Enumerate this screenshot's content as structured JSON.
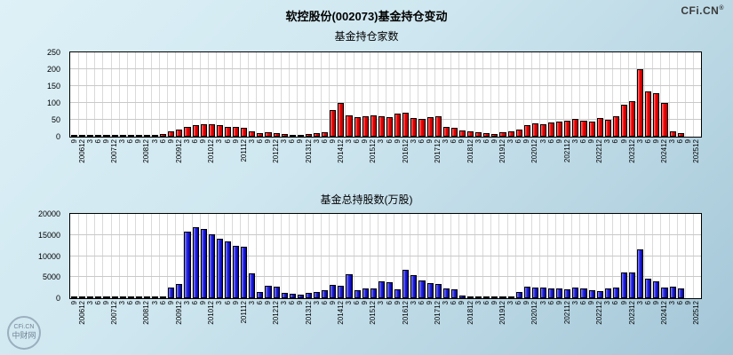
{
  "page": {
    "title": "软控股份(002073)基金持仓变动",
    "brand": "CFi.CN",
    "brand_reg": "®",
    "stamp": {
      "line1": "CFi.CN",
      "line2": "中财网"
    }
  },
  "chart_data": [
    {
      "type": "bar",
      "title": "基金持仓家数",
      "xlabel": "",
      "ylabel": "",
      "bar_color": "#ff0000",
      "bar_class": "red",
      "grid": true,
      "legend": "none",
      "ylim": [
        0,
        250
      ],
      "yticks": [
        0,
        50,
        100,
        150,
        200,
        250
      ],
      "x": [
        "9",
        "200612",
        "3",
        "6",
        "9",
        "200712",
        "3",
        "6",
        "9",
        "200812",
        "3",
        "6",
        "9",
        "200912",
        "3",
        "6",
        "9",
        "201012",
        "3",
        "6",
        "9",
        "201112",
        "3",
        "6",
        "9",
        "201212",
        "3",
        "6",
        "9",
        "201312",
        "3",
        "6",
        "9",
        "201412",
        "3",
        "6",
        "9",
        "201512",
        "3",
        "6",
        "9",
        "201612",
        "3",
        "6",
        "9",
        "201712",
        "3",
        "6",
        "9",
        "201812",
        "3",
        "6",
        "9",
        "201912",
        "3",
        "6",
        "9",
        "202012",
        "3",
        "6",
        "9",
        "202112",
        "3",
        "6",
        "9",
        "202212",
        "3",
        "6",
        "9",
        "202312",
        "3",
        "6",
        "9",
        "202412",
        "3",
        "6",
        "9",
        "202512"
      ],
      "values": [
        2,
        3,
        2,
        2,
        3,
        3,
        2,
        2,
        2,
        3,
        5,
        8,
        15,
        20,
        30,
        35,
        38,
        36,
        33,
        30,
        28,
        25,
        15,
        10,
        12,
        10,
        8,
        6,
        5,
        8,
        10,
        12,
        78,
        100,
        62,
        58,
        60,
        63,
        60,
        58,
        68,
        70,
        55,
        52,
        58,
        60,
        30,
        25,
        18,
        15,
        12,
        10,
        8,
        14,
        16,
        20,
        35,
        40,
        38,
        42,
        45,
        48,
        52,
        48,
        45,
        55,
        50,
        60,
        95,
        105,
        200,
        135,
        130,
        100,
        15,
        10,
        0,
        0
      ]
    },
    {
      "type": "bar",
      "title": "基金总持股数(万股)",
      "xlabel": "",
      "ylabel": "",
      "bar_color": "#0000ff",
      "bar_class": "blue",
      "grid": true,
      "legend": "none",
      "ylim": [
        0,
        20000
      ],
      "yticks": [
        0,
        5000,
        10000,
        15000,
        20000
      ],
      "x": [
        "9",
        "200612",
        "3",
        "6",
        "9",
        "200712",
        "3",
        "6",
        "9",
        "200812",
        "3",
        "6",
        "9",
        "200912",
        "3",
        "6",
        "9",
        "201012",
        "3",
        "6",
        "9",
        "201112",
        "3",
        "6",
        "9",
        "201212",
        "3",
        "6",
        "9",
        "201312",
        "3",
        "6",
        "9",
        "201412",
        "3",
        "6",
        "9",
        "201512",
        "3",
        "6",
        "9",
        "201612",
        "3",
        "6",
        "9",
        "201712",
        "3",
        "6",
        "9",
        "201812",
        "3",
        "6",
        "9",
        "201912",
        "3",
        "6",
        "9",
        "202012",
        "3",
        "6",
        "9",
        "202112",
        "3",
        "6",
        "9",
        "202212",
        "3",
        "6",
        "9",
        "202312",
        "3",
        "6",
        "9",
        "202412",
        "3",
        "6",
        "9",
        "202512"
      ],
      "values": [
        30,
        50,
        40,
        40,
        60,
        80,
        60,
        50,
        40,
        100,
        200,
        400,
        2500,
        3300,
        15800,
        16800,
        16500,
        15200,
        14200,
        13500,
        12400,
        12200,
        5800,
        1500,
        3000,
        2800,
        1300,
        1000,
        800,
        1200,
        1500,
        1800,
        3200,
        3000,
        5600,
        1900,
        2400,
        2300,
        3900,
        3700,
        2000,
        6800,
        5400,
        4200,
        3600,
        3400,
        2400,
        2200,
        700,
        500,
        400,
        300,
        250,
        400,
        500,
        1500,
        2700,
        2600,
        2500,
        2400,
        2300,
        2200,
        2600,
        2400,
        1800,
        1700,
        2400,
        2500,
        6000,
        6200,
        11500,
        4600,
        4000,
        2600,
        2800,
        2400,
        0,
        0
      ]
    }
  ]
}
